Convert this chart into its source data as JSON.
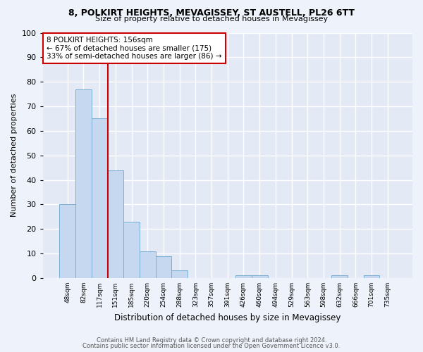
{
  "title1": "8, POLKIRT HEIGHTS, MEVAGISSEY, ST AUSTELL, PL26 6TT",
  "title2": "Size of property relative to detached houses in Mevagissey",
  "xlabel": "Distribution of detached houses by size in Mevagissey",
  "ylabel": "Number of detached properties",
  "bin_labels": [
    "48sqm",
    "82sqm",
    "117sqm",
    "151sqm",
    "185sqm",
    "220sqm",
    "254sqm",
    "288sqm",
    "323sqm",
    "357sqm",
    "391sqm",
    "426sqm",
    "460sqm",
    "494sqm",
    "529sqm",
    "563sqm",
    "598sqm",
    "632sqm",
    "666sqm",
    "701sqm",
    "735sqm"
  ],
  "bar_heights": [
    30,
    77,
    65,
    44,
    23,
    11,
    9,
    3,
    0,
    0,
    0,
    1,
    1,
    0,
    0,
    0,
    0,
    1,
    0,
    1,
    0
  ],
  "bar_color": "#c5d8ef",
  "bar_edge_color": "#7aafd4",
  "vline_x_index": 3,
  "vline_color": "#cc0000",
  "annotation_text": "8 POLKIRT HEIGHTS: 156sqm\n← 67% of detached houses are smaller (175)\n33% of semi-detached houses are larger (86) →",
  "annotation_box_color": "white",
  "annotation_box_edge_color": "#cc0000",
  "ylim": [
    0,
    100
  ],
  "yticks": [
    0,
    10,
    20,
    30,
    40,
    50,
    60,
    70,
    80,
    90,
    100
  ],
  "footer1": "Contains HM Land Registry data © Crown copyright and database right 2024.",
  "footer2": "Contains public sector information licensed under the Open Government Licence v3.0.",
  "bg_color": "#eef2fa",
  "plot_bg_color": "#e4eaf5"
}
